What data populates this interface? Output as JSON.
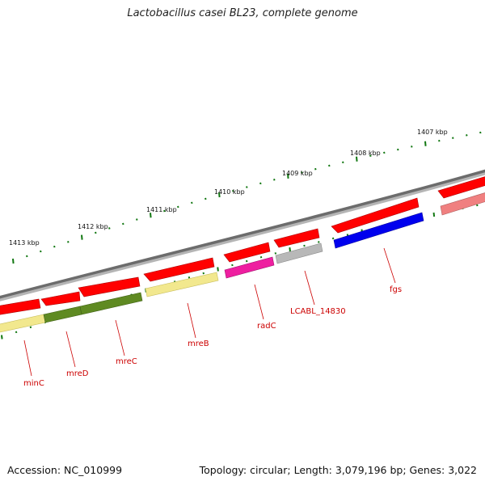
{
  "header": {
    "title": "Lactobacillus casei BL23, complete genome"
  },
  "footer": {
    "accession": "Accession: NC_010999",
    "topology": "Topology: circular; Length: 3,079,196 bp; Genes: 3,022"
  },
  "scale": {
    "ticks": [
      {
        "label": "1413 kbp"
      },
      {
        "label": "1412 kbp"
      },
      {
        "label": "1411 kbp"
      },
      {
        "label": "1410 kbp"
      },
      {
        "label": "1409 kbp"
      },
      {
        "label": "1408 kbp"
      },
      {
        "label": "1407 kbp"
      }
    ]
  },
  "genes": [
    {
      "label": "minC"
    },
    {
      "label": "mreD"
    },
    {
      "label": "mreC"
    },
    {
      "label": "mreB"
    },
    {
      "label": "radC"
    },
    {
      "label": "LCABL_14830"
    },
    {
      "label": "fgs"
    }
  ],
  "colors": {
    "backbone": "#777777",
    "cds": "#ff0000",
    "tick": "#117711",
    "label": "#cc0000",
    "gene_minC": "#f2e88e",
    "gene_mreD": "#5f8a22",
    "gene_mreC": "#5f8a22",
    "gene_mreB": "#f2e88e",
    "gene_radC": "#ee1fa0",
    "gene_LCABL_14830": "#b8b8b8",
    "gene_fgs": "#0000ee",
    "gene_right": "#f08080"
  }
}
